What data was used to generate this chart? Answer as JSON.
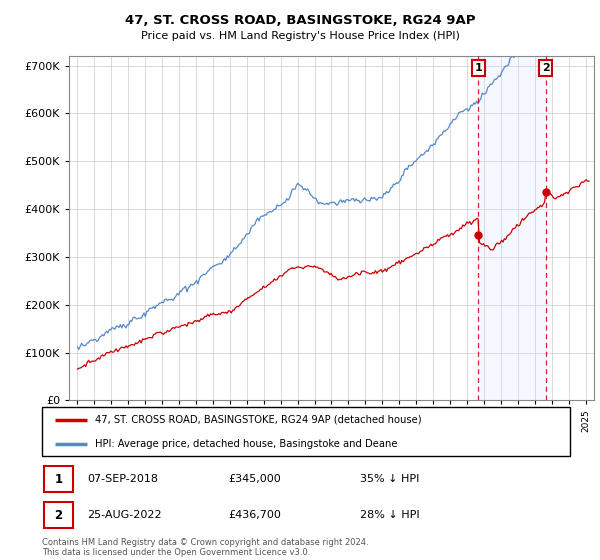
{
  "title": "47, ST. CROSS ROAD, BASINGSTOKE, RG24 9AP",
  "subtitle": "Price paid vs. HM Land Registry's House Price Index (HPI)",
  "hpi_color": "#5588cc",
  "hpi_fill_color": "#cce0ff",
  "price_color": "#cc0000",
  "dashed_color": "#cc0000",
  "sale1_x": 2018.68,
  "sale1_y": 345000,
  "sale2_x": 2022.65,
  "sale2_y": 436700,
  "legend_label_red": "47, ST. CROSS ROAD, BASINGSTOKE, RG24 9AP (detached house)",
  "legend_label_blue": "HPI: Average price, detached house, Basingstoke and Deane",
  "footnote": "Contains HM Land Registry data © Crown copyright and database right 2024.\nThis data is licensed under the Open Government Licence v3.0.",
  "ylim": [
    0,
    720000
  ],
  "xlim_start": 1994.5,
  "xlim_end": 2025.5,
  "yticks": [
    0,
    100000,
    200000,
    300000,
    400000,
    500000,
    600000,
    700000
  ]
}
